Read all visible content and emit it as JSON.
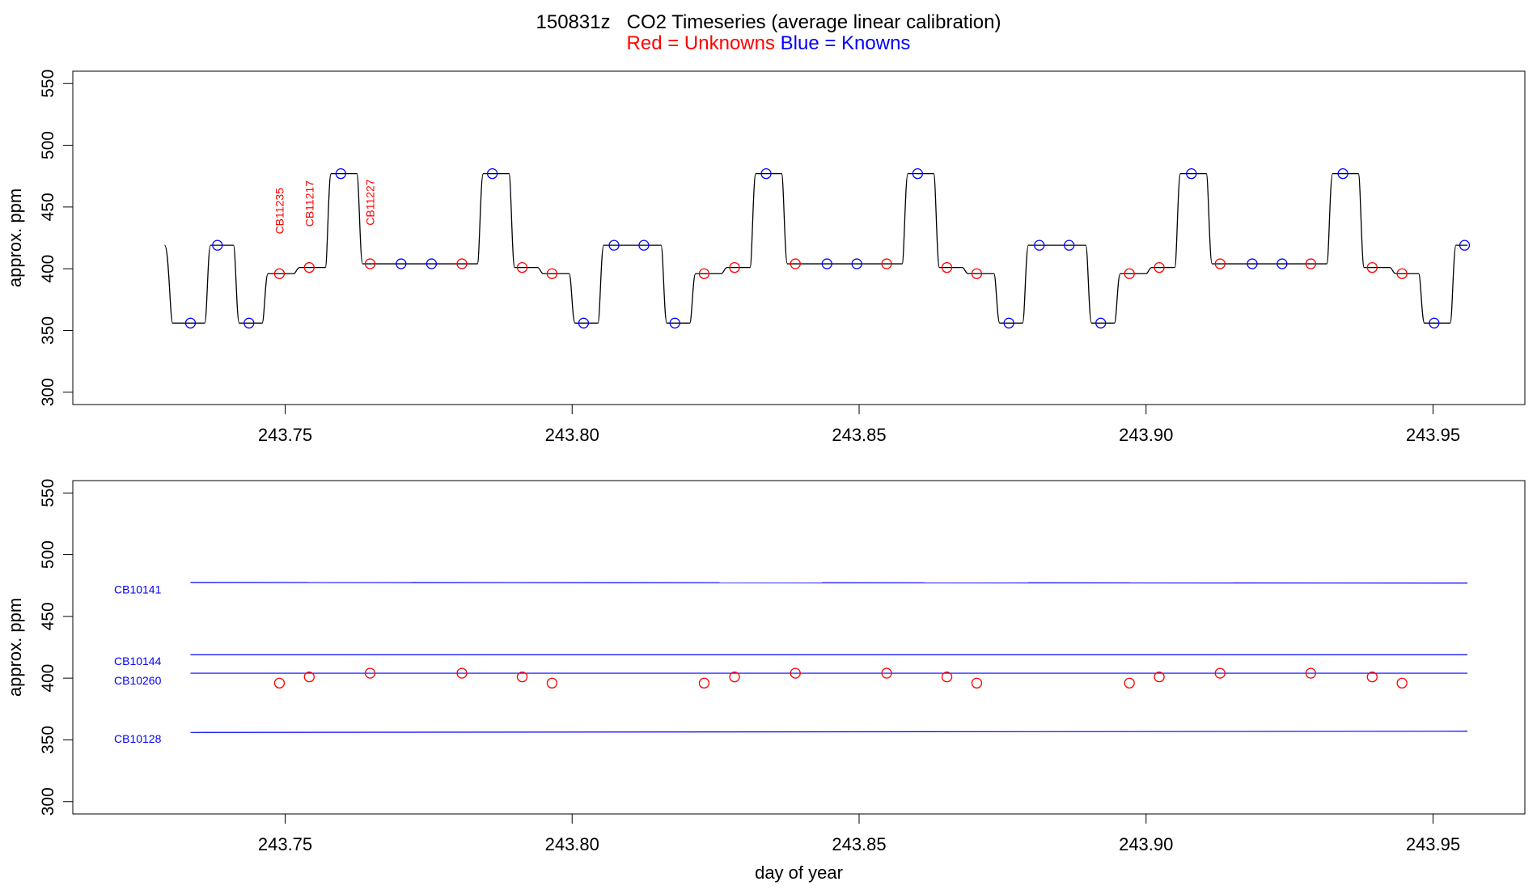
{
  "title": {
    "run_id": "150831z",
    "text": "CO2 Timeseries (average linear calibration)",
    "legend_red": "Red = Unknowns",
    "legend_blue": "Blue = Knowns"
  },
  "colors": {
    "unknown": "#ff0000",
    "known": "#0000ff",
    "trace": "#000000"
  },
  "chart_data": [
    {
      "type": "line",
      "panel": "top",
      "title": "150831z   CO2 Timeseries (average linear calibration)",
      "xlabel": "",
      "ylabel": "approx. ppm",
      "xlim": [
        243.713,
        243.966
      ],
      "ylim": [
        290,
        560
      ],
      "xticks": [
        243.75,
        243.8,
        243.85,
        243.9,
        243.95
      ],
      "xtick_labels": [
        "243.75",
        "243.80",
        "243.85",
        "243.90",
        "243.95"
      ],
      "yticks": [
        300,
        350,
        400,
        450,
        500,
        550
      ],
      "ytick_labels": [
        "300",
        "350",
        "400",
        "450",
        "500",
        "550"
      ],
      "trace_segments": [
        {
          "start": 243.729,
          "end": 243.736,
          "value": 356
        },
        {
          "start": 243.736,
          "end": 243.741,
          "value": 419
        },
        {
          "start": 243.741,
          "end": 243.746,
          "value": 356
        },
        {
          "start": 243.746,
          "end": 243.7515,
          "value": 396
        },
        {
          "start": 243.7515,
          "end": 243.757,
          "value": 401
        },
        {
          "start": 243.757,
          "end": 243.7625,
          "value": 477
        },
        {
          "start": 243.7625,
          "end": 243.7835,
          "value": 404
        },
        {
          "start": 243.7835,
          "end": 243.789,
          "value": 477
        },
        {
          "start": 243.789,
          "end": 243.794,
          "value": 401
        },
        {
          "start": 243.794,
          "end": 243.7995,
          "value": 396
        },
        {
          "start": 243.7995,
          "end": 243.8045,
          "value": 356
        },
        {
          "start": 243.8045,
          "end": 243.8155,
          "value": 419
        },
        {
          "start": 243.8155,
          "end": 243.8205,
          "value": 356
        },
        {
          "start": 243.8205,
          "end": 243.826,
          "value": 396
        },
        {
          "start": 243.826,
          "end": 243.831,
          "value": 401
        },
        {
          "start": 243.831,
          "end": 243.8365,
          "value": 477
        },
        {
          "start": 243.8365,
          "end": 243.8575,
          "value": 404
        },
        {
          "start": 243.8575,
          "end": 243.863,
          "value": 477
        },
        {
          "start": 243.863,
          "end": 243.868,
          "value": 401
        },
        {
          "start": 243.868,
          "end": 243.8735,
          "value": 396
        },
        {
          "start": 243.8735,
          "end": 243.8785,
          "value": 356
        },
        {
          "start": 243.8785,
          "end": 243.8895,
          "value": 419
        },
        {
          "start": 243.8895,
          "end": 243.8945,
          "value": 356
        },
        {
          "start": 243.8945,
          "end": 243.9,
          "value": 396
        },
        {
          "start": 243.9,
          "end": 243.905,
          "value": 401
        },
        {
          "start": 243.905,
          "end": 243.9105,
          "value": 477
        },
        {
          "start": 243.9105,
          "end": 243.9315,
          "value": 404
        },
        {
          "start": 243.9315,
          "end": 243.937,
          "value": 477
        },
        {
          "start": 243.937,
          "end": 243.9425,
          "value": 401
        },
        {
          "start": 243.9425,
          "end": 243.9475,
          "value": 396
        },
        {
          "start": 243.9475,
          "end": 243.953,
          "value": 356
        },
        {
          "start": 243.953,
          "end": 243.956,
          "value": 419
        }
      ],
      "trace_start_value": 419,
      "unknowns": {
        "x": [
          243.749,
          243.7542,
          243.7648,
          243.7808,
          243.7913,
          243.7965,
          243.823,
          243.8283,
          243.8389,
          243.8548,
          243.8653,
          243.8705,
          243.8971,
          243.9023,
          243.9129,
          243.9287,
          243.9394,
          243.9446
        ],
        "y": [
          396,
          401,
          404,
          404,
          401,
          396,
          396,
          401,
          404,
          404,
          401,
          396,
          396,
          401,
          404,
          404,
          401,
          396
        ]
      },
      "knowns": {
        "x": [
          243.7335,
          243.7382,
          243.7437,
          243.7597,
          243.7702,
          243.7755,
          243.7861,
          243.802,
          243.8073,
          243.8125,
          243.8179,
          243.8338,
          243.8444,
          243.8496,
          243.8602,
          243.8761,
          243.8814,
          243.8866,
          243.8921,
          243.9079,
          243.9185,
          243.9237,
          243.9343,
          243.9502,
          243.9555
        ],
        "y": [
          356,
          419,
          356,
          477,
          404,
          404,
          477,
          356,
          419,
          419,
          356,
          477,
          404,
          404,
          477,
          356,
          419,
          419,
          356,
          477,
          404,
          404,
          477,
          356,
          419
        ]
      },
      "annotations": [
        {
          "text": "CB11235",
          "x": 243.749,
          "y": 428
        },
        {
          "text": "CB11217",
          "x": 243.7542,
          "y": 434
        },
        {
          "text": "CB11227",
          "x": 243.7648,
          "y": 435
        }
      ]
    },
    {
      "type": "scatter",
      "panel": "bottom",
      "xlabel": "day of year",
      "ylabel": "approx. ppm",
      "xlim": [
        243.713,
        243.966
      ],
      "ylim": [
        290,
        560
      ],
      "xticks": [
        243.75,
        243.8,
        243.85,
        243.9,
        243.95
      ],
      "xtick_labels": [
        "243.75",
        "243.80",
        "243.85",
        "243.90",
        "243.95"
      ],
      "yticks": [
        300,
        350,
        400,
        450,
        500,
        550
      ],
      "ytick_labels": [
        "300",
        "350",
        "400",
        "450",
        "500",
        "550"
      ],
      "reference_lines": [
        {
          "name": "CB10141",
          "x_start": 243.7335,
          "x_end": 243.956,
          "y_start": 477.5,
          "y_end": 477.0,
          "label_y": 472
        },
        {
          "name": "CB10144",
          "x_start": 243.7335,
          "x_end": 243.956,
          "y_start": 419.0,
          "y_end": 419.0,
          "label_y": 414
        },
        {
          "name": "CB10260",
          "x_start": 243.7335,
          "x_end": 243.956,
          "y_start": 404.0,
          "y_end": 404.0,
          "label_y": 398
        },
        {
          "name": "CB10128",
          "x_start": 243.7335,
          "x_end": 243.956,
          "y_start": 356.0,
          "y_end": 357.0,
          "label_y": 351
        }
      ],
      "unknowns": {
        "x": [
          243.749,
          243.7542,
          243.7648,
          243.7808,
          243.7913,
          243.7965,
          243.823,
          243.8283,
          243.8389,
          243.8548,
          243.8653,
          243.8705,
          243.8971,
          243.9023,
          243.9129,
          243.9287,
          243.9394,
          243.9446
        ],
        "y": [
          396,
          401,
          404,
          404,
          401,
          396,
          396,
          401,
          404,
          404,
          401,
          396,
          396,
          401,
          404,
          404,
          401,
          396
        ]
      }
    }
  ]
}
